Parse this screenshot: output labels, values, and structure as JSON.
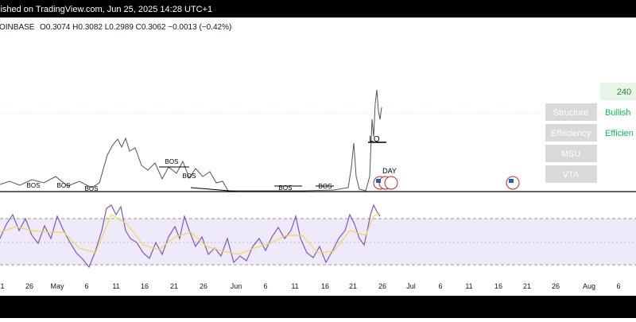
{
  "header": {
    "text": "lished on TradingView.com, Jun 25, 2025 14:28 UTC+1"
  },
  "legend": {
    "exchange": "OINBASE",
    "ohlc": "O0.3074 H0.3082 L0.2989 C0.3062 −0.0013 (−0.42%)"
  },
  "annotations": {
    "bos": [
      "BOS",
      "BOS",
      "BOS",
      "BOS",
      "BOS",
      "BOS",
      "BOS"
    ],
    "lq": "LQ",
    "day": "DAY"
  },
  "table": {
    "timeframe": "240",
    "rows": [
      [
        "Structure",
        "Bullish"
      ],
      [
        "Effeciency",
        "Efficien"
      ],
      [
        "MSU"
      ],
      [
        "VTA"
      ]
    ]
  },
  "x_axis": {
    "labels": [
      "1",
      "26",
      "May",
      "6",
      "11",
      "16",
      "21",
      "26",
      "Jun",
      "6",
      "11",
      "16",
      "21",
      "26",
      "Jul",
      "6",
      "11",
      "16",
      "21",
      "26",
      "Aug",
      "6"
    ]
  }
}
